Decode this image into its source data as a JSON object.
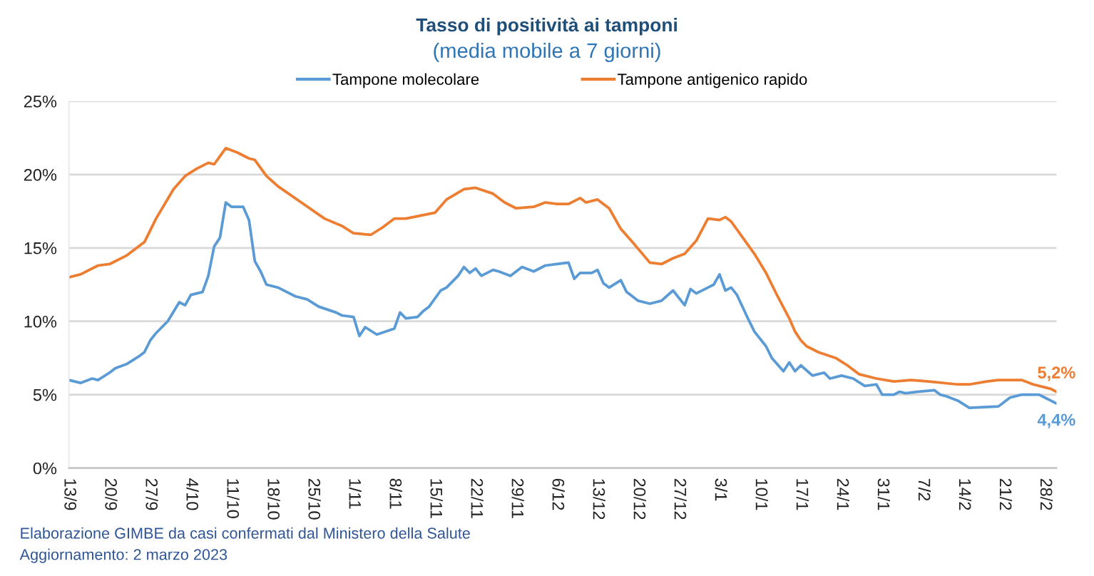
{
  "chart_data": {
    "type": "line",
    "title": "Tasso di positività ai tamponi",
    "subtitle": "(media mobile a 7 giorni)",
    "xlim": [
      "2022-09-13",
      "2023-03-02"
    ],
    "xticks": [
      {
        "value": "2022-09-13",
        "label": "13/9"
      },
      {
        "value": "2022-09-20",
        "label": "20/9"
      },
      {
        "value": "2022-09-27",
        "label": "27/9"
      },
      {
        "value": "2022-10-04",
        "label": "4/10"
      },
      {
        "value": "2022-10-11",
        "label": "11/10"
      },
      {
        "value": "2022-10-18",
        "label": "18/10"
      },
      {
        "value": "2022-10-25",
        "label": "25/10"
      },
      {
        "value": "2022-11-01",
        "label": "1/11"
      },
      {
        "value": "2022-11-08",
        "label": "8/11"
      },
      {
        "value": "2022-11-15",
        "label": "15/11"
      },
      {
        "value": "2022-11-22",
        "label": "22/11"
      },
      {
        "value": "2022-11-29",
        "label": "29/11"
      },
      {
        "value": "2022-12-06",
        "label": "6/12"
      },
      {
        "value": "2022-12-13",
        "label": "13/12"
      },
      {
        "value": "2022-12-20",
        "label": "20/12"
      },
      {
        "value": "2022-12-27",
        "label": "27/12"
      },
      {
        "value": "2023-01-03",
        "label": "3/1"
      },
      {
        "value": "2023-01-10",
        "label": "10/1"
      },
      {
        "value": "2023-01-17",
        "label": "17/1"
      },
      {
        "value": "2023-01-24",
        "label": "24/1"
      },
      {
        "value": "2023-01-31",
        "label": "31/1"
      },
      {
        "value": "2023-02-07",
        "label": "7/2"
      },
      {
        "value": "2023-02-14",
        "label": "14/2"
      },
      {
        "value": "2023-02-21",
        "label": "21/2"
      },
      {
        "value": "2023-02-28",
        "label": "28/2"
      }
    ],
    "ylim": [
      0,
      25
    ],
    "yticks": [
      {
        "value": 0,
        "label": "0%"
      },
      {
        "value": 5,
        "label": "5%"
      },
      {
        "value": 10,
        "label": "10%"
      },
      {
        "value": 15,
        "label": "15%"
      },
      {
        "value": 20,
        "label": "20%"
      },
      {
        "value": 25,
        "label": "25%"
      }
    ],
    "grid": "y",
    "legend": "top",
    "line_style": "solid",
    "series": [
      {
        "name": "Tampone molecolare",
        "color": "#5b9bd5",
        "x": [
          "2022-09-13",
          "2022-09-15",
          "2022-09-17",
          "2022-09-18",
          "2022-09-20",
          "2022-09-21",
          "2022-09-23",
          "2022-09-25",
          "2022-09-26",
          "2022-09-27",
          "2022-09-28",
          "2022-09-30",
          "2022-10-02",
          "2022-10-03",
          "2022-10-04",
          "2022-10-06",
          "2022-10-07",
          "2022-10-08",
          "2022-10-09",
          "2022-10-10",
          "2022-10-11",
          "2022-10-13",
          "2022-10-14",
          "2022-10-15",
          "2022-10-16",
          "2022-10-17",
          "2022-10-19",
          "2022-10-22",
          "2022-10-24",
          "2022-10-26",
          "2022-10-29",
          "2022-10-30",
          "2022-11-01",
          "2022-11-02",
          "2022-11-03",
          "2022-11-05",
          "2022-11-08",
          "2022-11-09",
          "2022-11-10",
          "2022-11-12",
          "2022-11-13",
          "2022-11-14",
          "2022-11-16",
          "2022-11-17",
          "2022-11-19",
          "2022-11-20",
          "2022-11-21",
          "2022-11-22",
          "2022-11-23",
          "2022-11-25",
          "2022-11-26",
          "2022-11-28",
          "2022-11-29",
          "2022-11-30",
          "2022-12-02",
          "2022-12-04",
          "2022-12-06",
          "2022-12-08",
          "2022-12-09",
          "2022-12-10",
          "2022-12-12",
          "2022-12-13",
          "2022-12-14",
          "2022-12-15",
          "2022-12-17",
          "2022-12-18",
          "2022-12-20",
          "2022-12-22",
          "2022-12-24",
          "2022-12-26",
          "2022-12-28",
          "2022-12-29",
          "2022-12-30",
          "2023-01-01",
          "2023-01-02",
          "2023-01-03",
          "2023-01-04",
          "2023-01-05",
          "2023-01-06",
          "2023-01-08",
          "2023-01-09",
          "2023-01-11",
          "2023-01-12",
          "2023-01-14",
          "2023-01-15",
          "2023-01-16",
          "2023-01-17",
          "2023-01-19",
          "2023-01-21",
          "2023-01-22",
          "2023-01-24",
          "2023-01-26",
          "2023-01-28",
          "2023-01-30",
          "2023-01-31",
          "2023-02-02",
          "2023-02-03",
          "2023-02-04",
          "2023-02-06",
          "2023-02-09",
          "2023-02-10",
          "2023-02-11",
          "2023-02-13",
          "2023-02-15",
          "2023-02-20",
          "2023-02-22",
          "2023-02-24",
          "2023-02-27",
          "2023-02-28",
          "2023-03-01",
          "2023-03-02"
        ],
        "values": [
          6.0,
          5.8,
          6.1,
          6.0,
          6.5,
          6.8,
          7.1,
          7.6,
          7.9,
          8.7,
          9.2,
          10.0,
          11.3,
          11.1,
          11.8,
          12.0,
          13.1,
          15.1,
          15.7,
          18.1,
          17.8,
          17.8,
          16.9,
          14.1,
          13.4,
          12.5,
          12.3,
          11.7,
          11.5,
          11.0,
          10.6,
          10.4,
          10.3,
          9.0,
          9.6,
          9.1,
          9.5,
          10.6,
          10.2,
          10.3,
          10.7,
          11.0,
          12.1,
          12.3,
          13.1,
          13.7,
          13.3,
          13.6,
          13.1,
          13.5,
          13.4,
          13.1,
          13.4,
          13.7,
          13.4,
          13.8,
          13.9,
          14.0,
          12.9,
          13.3,
          13.3,
          13.5,
          12.6,
          12.3,
          12.8,
          12.0,
          11.4,
          11.2,
          11.4,
          12.1,
          11.1,
          12.2,
          11.9,
          12.3,
          12.5,
          13.2,
          12.1,
          12.3,
          11.8,
          10.1,
          9.3,
          8.3,
          7.5,
          6.6,
          7.2,
          6.6,
          7.0,
          6.3,
          6.5,
          6.1,
          6.3,
          6.1,
          5.6,
          5.7,
          5.0,
          5.0,
          5.2,
          5.1,
          5.2,
          5.3,
          5.0,
          4.9,
          4.6,
          4.1,
          4.2,
          4.8,
          5.0,
          5.0,
          4.8,
          4.6,
          4.4
        ],
        "value_labels": [
          null,
          null,
          null,
          null,
          null,
          null,
          null,
          null,
          null,
          null,
          null,
          null,
          null,
          null,
          null,
          null,
          null,
          null,
          null,
          null,
          null,
          null,
          null,
          null,
          null,
          null,
          null,
          null,
          null,
          null,
          null,
          null,
          null,
          null,
          null,
          null,
          null,
          null,
          null,
          null,
          null,
          null,
          null,
          null,
          null,
          null,
          null,
          null,
          null,
          null,
          null,
          null,
          null,
          null,
          null,
          null,
          null,
          null,
          null,
          null,
          null,
          null,
          null,
          null,
          null,
          null,
          null,
          null,
          null,
          null,
          null,
          null,
          null,
          null,
          null,
          null,
          null,
          null,
          null,
          null,
          null,
          null,
          null,
          null,
          null,
          null,
          null,
          null,
          null,
          null,
          null,
          null,
          null,
          null,
          null,
          null,
          null,
          null,
          null,
          null,
          null,
          null,
          null,
          null,
          null,
          null,
          null,
          null,
          null,
          null,
          "4,4%"
        ]
      },
      {
        "name": "Tampone antigenico rapido",
        "color": "#ed7d31",
        "x": [
          "2022-09-13",
          "2022-09-15",
          "2022-09-18",
          "2022-09-20",
          "2022-09-23",
          "2022-09-26",
          "2022-09-28",
          "2022-10-01",
          "2022-10-03",
          "2022-10-05",
          "2022-10-07",
          "2022-10-08",
          "2022-10-10",
          "2022-10-12",
          "2022-10-14",
          "2022-10-15",
          "2022-10-17",
          "2022-10-19",
          "2022-10-23",
          "2022-10-27",
          "2022-10-30",
          "2022-11-01",
          "2022-11-04",
          "2022-11-06",
          "2022-11-08",
          "2022-11-10",
          "2022-11-15",
          "2022-11-17",
          "2022-11-20",
          "2022-11-22",
          "2022-11-25",
          "2022-11-27",
          "2022-11-29",
          "2022-12-02",
          "2022-12-04",
          "2022-12-06",
          "2022-12-08",
          "2022-12-10",
          "2022-12-11",
          "2022-12-13",
          "2022-12-15",
          "2022-12-17",
          "2022-12-19",
          "2022-12-22",
          "2022-12-24",
          "2022-12-26",
          "2022-12-28",
          "2022-12-30",
          "2023-01-01",
          "2023-01-03",
          "2023-01-04",
          "2023-01-05",
          "2023-01-07",
          "2023-01-09",
          "2023-01-11",
          "2023-01-13",
          "2023-01-15",
          "2023-01-16",
          "2023-01-17",
          "2023-01-18",
          "2023-01-20",
          "2023-01-23",
          "2023-01-25",
          "2023-01-27",
          "2023-01-30",
          "2023-02-02",
          "2023-02-05",
          "2023-02-08",
          "2023-02-13",
          "2023-02-15",
          "2023-02-18",
          "2023-02-20",
          "2023-02-24",
          "2023-02-26",
          "2023-02-28",
          "2023-03-01",
          "2023-03-02"
        ],
        "values": [
          13.0,
          13.2,
          13.8,
          13.9,
          14.5,
          15.4,
          17.0,
          19.0,
          19.9,
          20.4,
          20.8,
          20.7,
          21.8,
          21.5,
          21.1,
          21.0,
          19.9,
          19.2,
          18.1,
          17.0,
          16.5,
          16.0,
          15.9,
          16.4,
          17.0,
          17.0,
          17.4,
          18.3,
          19.0,
          19.1,
          18.7,
          18.1,
          17.7,
          17.8,
          18.1,
          18.0,
          18.0,
          18.4,
          18.1,
          18.3,
          17.7,
          16.3,
          15.4,
          14.0,
          13.9,
          14.3,
          14.6,
          15.5,
          17.0,
          16.9,
          17.1,
          16.8,
          15.7,
          14.6,
          13.3,
          11.7,
          10.2,
          9.3,
          8.7,
          8.3,
          7.9,
          7.5,
          7.0,
          6.4,
          6.1,
          5.9,
          6.0,
          5.9,
          5.7,
          5.7,
          5.9,
          6.0,
          6.0,
          5.7,
          5.5,
          5.4,
          5.2
        ],
        "value_labels": [
          null,
          null,
          null,
          null,
          null,
          null,
          null,
          null,
          null,
          null,
          null,
          null,
          null,
          null,
          null,
          null,
          null,
          null,
          null,
          null,
          null,
          null,
          null,
          null,
          null,
          null,
          null,
          null,
          null,
          null,
          null,
          null,
          null,
          null,
          null,
          null,
          null,
          null,
          null,
          null,
          null,
          null,
          null,
          null,
          null,
          null,
          null,
          null,
          null,
          null,
          null,
          null,
          null,
          null,
          null,
          null,
          null,
          null,
          null,
          null,
          null,
          null,
          null,
          null,
          null,
          null,
          null,
          null,
          null,
          null,
          null,
          null,
          null,
          null,
          null,
          null,
          "5,2%"
        ]
      }
    ],
    "annotations": [
      "Elaborazione GIMBE da casi confermati dal Ministero della Salute",
      "Aggiornamento: 2 marzo 2023"
    ]
  }
}
